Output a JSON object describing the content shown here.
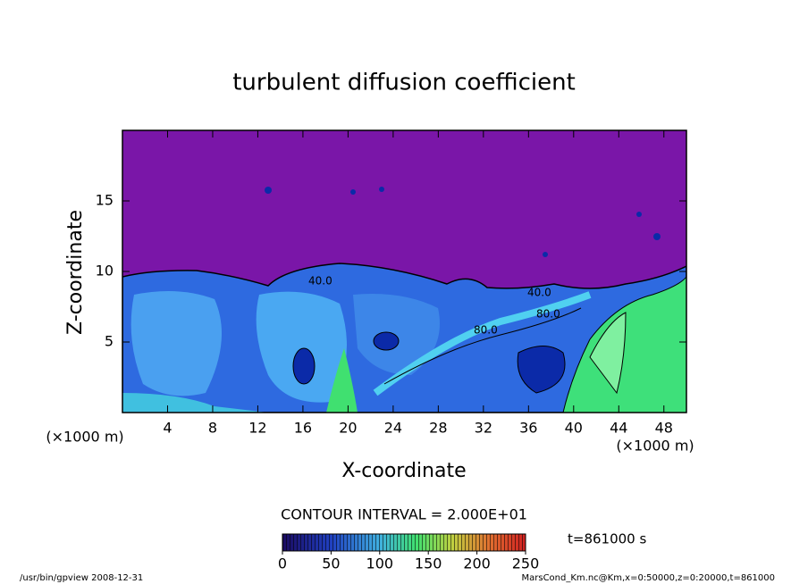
{
  "chart_data": {
    "type": "contour",
    "title": "turbulent diffusion coefficient",
    "x_label": "X-coordinate",
    "y_label": "Z-coordinate",
    "x_unit": "(×1000 m)",
    "y_unit": "(×1000 m)",
    "xlim": [
      0,
      50
    ],
    "xticks": [
      4,
      8,
      12,
      16,
      20,
      24,
      28,
      32,
      36,
      40,
      44,
      48
    ],
    "ylim": [
      0,
      20
    ],
    "yticks": [
      5,
      10,
      15
    ],
    "contour_labels": [
      "40.0",
      "40.0",
      "80.0",
      "80.0"
    ],
    "contour_interval": "CONTOUR INTERVAL = 2.000E+01",
    "time_label": "t=861000 s",
    "colorbar": {
      "lim": [
        0,
        250
      ],
      "ticks": [
        0,
        50,
        100,
        150,
        200,
        250
      ]
    },
    "footer_left": "/usr/bin/gpview  2008-12-31",
    "footer_right": "MarsCond_Km.nc@Km,x=0:50000,z=0:20000,t=861000"
  }
}
